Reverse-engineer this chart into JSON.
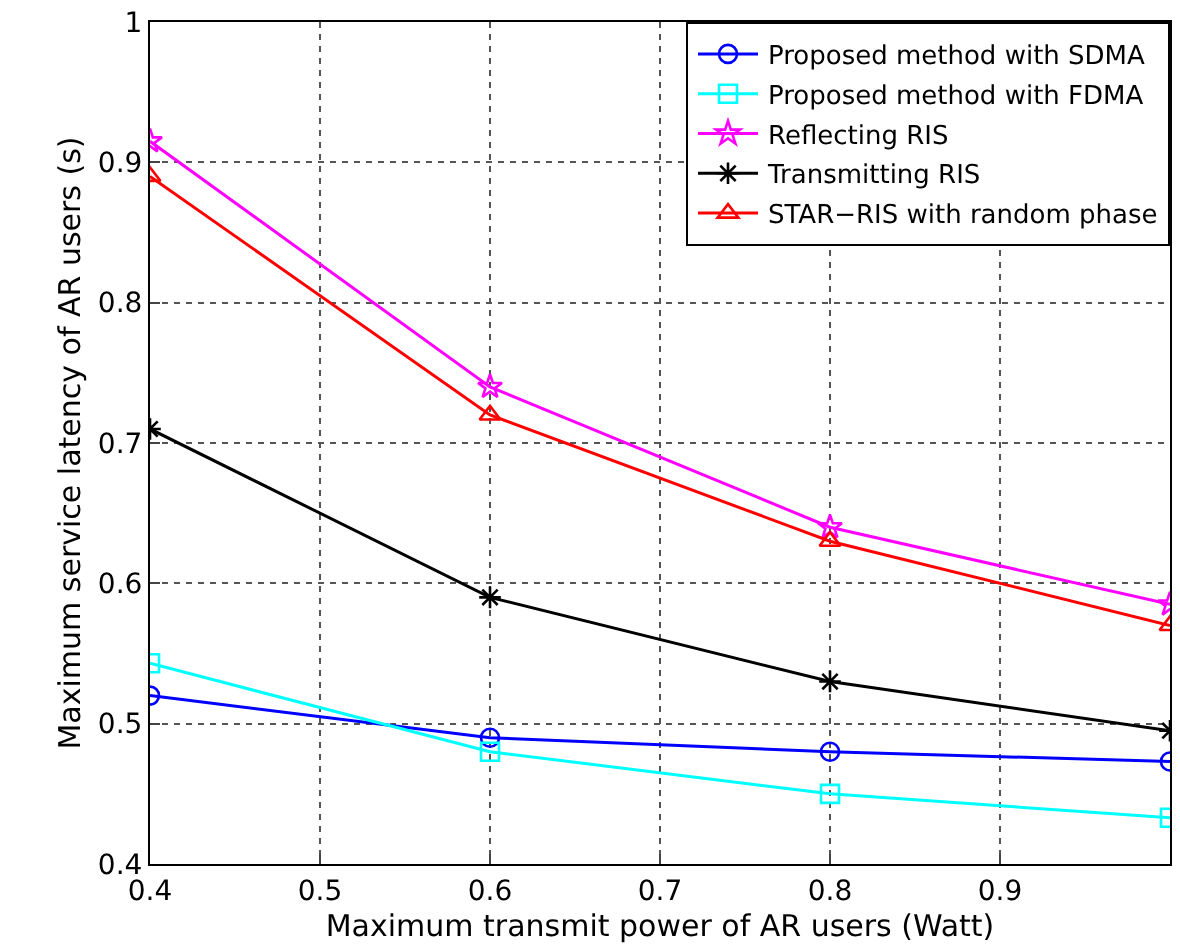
{
  "chart_data": {
    "type": "line",
    "xlabel": "Maximum transmit power of AR users (Watt)",
    "ylabel": "Maximum service latency of AR users (s)",
    "x": [
      0.4,
      0.6,
      0.8,
      1.0
    ],
    "xlim": [
      0.4,
      1.0
    ],
    "xticks": [
      0.4,
      0.5,
      0.6,
      0.7,
      0.8,
      0.9
    ],
    "ylim": [
      0.4,
      1.0
    ],
    "yticks": [
      0.4,
      0.5,
      0.6,
      0.7,
      0.8,
      0.9,
      1
    ],
    "grid": true,
    "legend": "top right",
    "line_style": "solid",
    "series": [
      {
        "name": "Proposed method with SDMA",
        "color": "#0000ff",
        "marker": "circle",
        "values": [
          0.52,
          0.49,
          0.48,
          0.473
        ]
      },
      {
        "name": "Proposed method with FDMA",
        "color": "#00ffff",
        "marker": "square",
        "values": [
          0.543,
          0.48,
          0.45,
          0.433
        ]
      },
      {
        "name": "Reflecting RIS",
        "color": "#ff00ff",
        "marker": "star",
        "values": [
          0.915,
          0.74,
          0.64,
          0.585
        ]
      },
      {
        "name": "Transmitting RIS",
        "color": "#000000",
        "marker": "cross",
        "values": [
          0.71,
          0.59,
          0.53,
          0.495
        ]
      },
      {
        "name": "STAR−RIS with random phase",
        "color": "#ff0000",
        "marker": "triangle",
        "values": [
          0.89,
          0.72,
          0.63,
          0.57
        ]
      }
    ]
  }
}
